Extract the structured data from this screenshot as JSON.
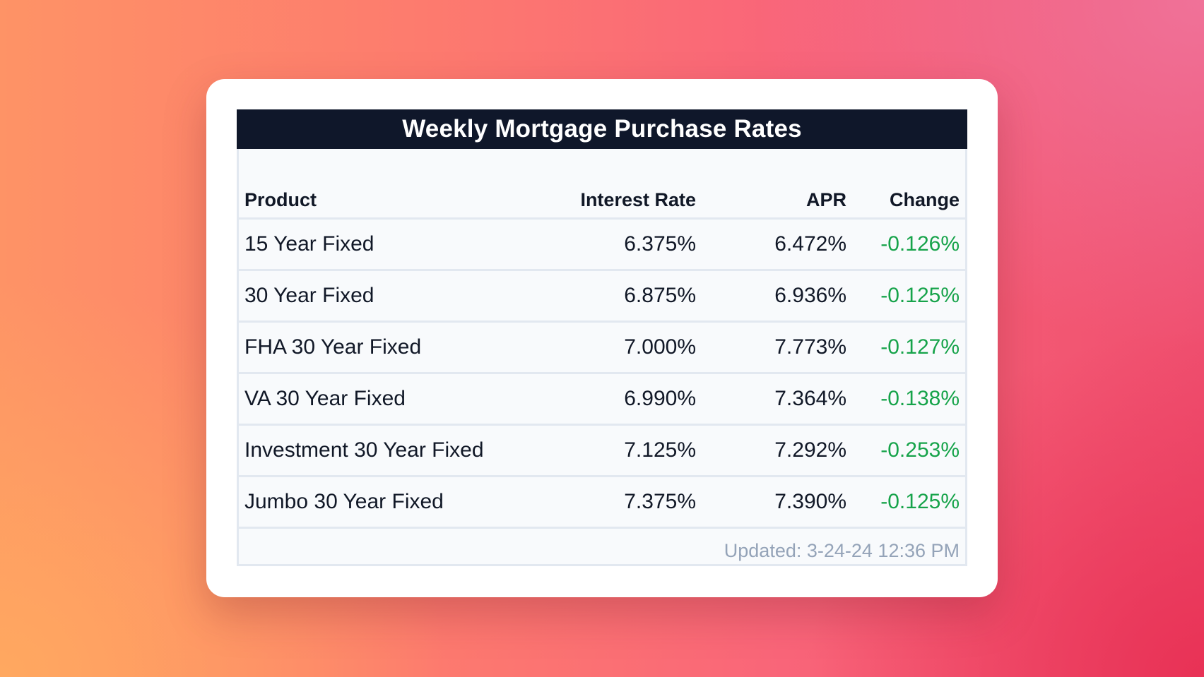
{
  "title": "Weekly Mortgage Purchase Rates",
  "columns": {
    "product": "Product",
    "rate": "Interest Rate",
    "apr": "APR",
    "change": "Change"
  },
  "rows": [
    {
      "product": "15 Year Fixed",
      "rate": "6.375%",
      "apr": "6.472%",
      "change": "-0.126%"
    },
    {
      "product": "30 Year Fixed",
      "rate": "6.875%",
      "apr": "6.936%",
      "change": "-0.125%"
    },
    {
      "product": "FHA 30 Year Fixed",
      "rate": "7.000%",
      "apr": "7.773%",
      "change": "-0.127%"
    },
    {
      "product": "VA 30 Year Fixed",
      "rate": "6.990%",
      "apr": "7.364%",
      "change": "-0.138%"
    },
    {
      "product": "Investment 30 Year Fixed",
      "rate": "7.125%",
      "apr": "7.292%",
      "change": "-0.253%"
    },
    {
      "product": "Jumbo 30 Year Fixed",
      "rate": "7.375%",
      "apr": "7.390%",
      "change": "-0.125%"
    }
  ],
  "updated": "Updated: 3-24-24 12:36 PM",
  "colors": {
    "header_bg": "#0f172a",
    "change_negative": "#16a34a",
    "muted": "#94a3b8"
  }
}
